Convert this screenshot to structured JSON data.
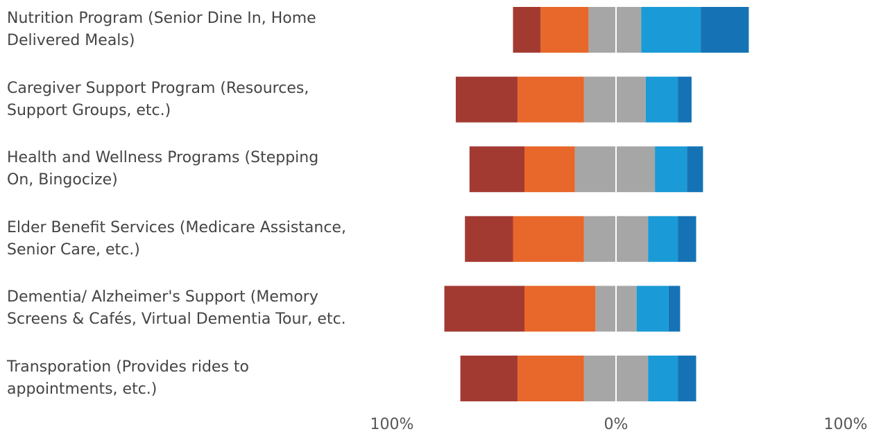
{
  "chart_data": {
    "type": "bar",
    "orientation": "horizontal",
    "stacked": "diverging",
    "categories": [
      "Nutrition Program (Senior Dine In, Home\nDelivered Meals)",
      "Caregiver Support Program (Resources,\nSupport Groups, etc.)",
      "Health and Wellness Programs (Stepping\nOn, Bingocize)",
      "Elder Benefit Services (Medicare Assistance,\nSenior Care, etc.)",
      "Dementia/ Alzheimer's Support (Memory\nScreens & Cafés, Virtual Dementia Tour, etc.",
      "Transporation (Provides rides to\nappointments, etc.)"
    ],
    "series": [
      {
        "side": "negative",
        "color": "#a33a32",
        "values": [
          12,
          27,
          24,
          21,
          35,
          25
        ]
      },
      {
        "side": "negative",
        "color": "#e8672a",
        "values": [
          21,
          29,
          22,
          31,
          31,
          29
        ]
      },
      {
        "side": "negative",
        "color": "#a6a6a6",
        "values": [
          12,
          14,
          18,
          14,
          9,
          14
        ]
      },
      {
        "side": "positive",
        "color": "#a6a6a6",
        "values": [
          11,
          13,
          17,
          14,
          9,
          14
        ]
      },
      {
        "side": "positive",
        "color": "#1a9ad6",
        "values": [
          26,
          14,
          14,
          13,
          14,
          13
        ]
      },
      {
        "side": "positive",
        "color": "#1573b5",
        "values": [
          21,
          6,
          7,
          8,
          5,
          8
        ]
      }
    ],
    "xlim": [
      -100,
      100
    ],
    "tick_labels": {
      "left": "100%",
      "center": "0%",
      "right": "100%"
    },
    "legend": "none",
    "grid": false
  }
}
